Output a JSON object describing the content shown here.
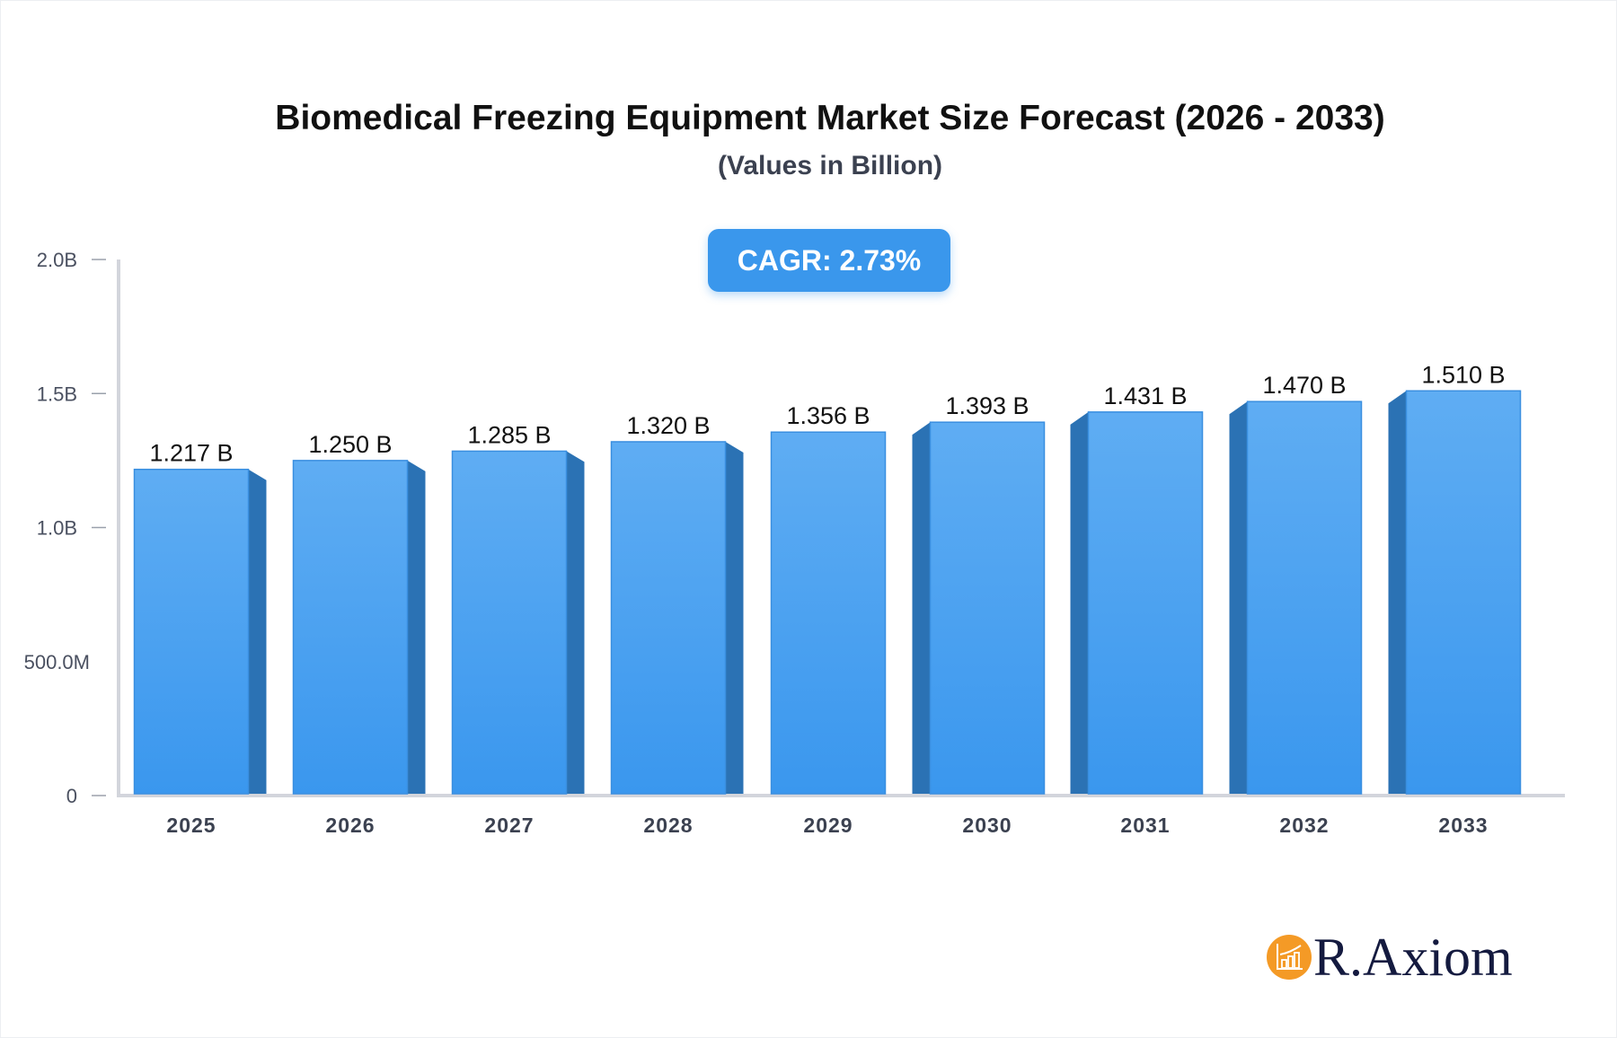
{
  "chart_data": {
    "type": "bar",
    "title": "Biomedical Freezing Equipment Market Size Forecast (2026 - 2033)",
    "subtitle": "(Values in Billion)",
    "categories": [
      "2025",
      "2026",
      "2027",
      "2028",
      "2029",
      "2030",
      "2031",
      "2032",
      "2033"
    ],
    "values": [
      1.217,
      1.25,
      1.285,
      1.32,
      1.356,
      1.393,
      1.431,
      1.47,
      1.51
    ],
    "data_labels": [
      "1.217 B",
      "1.250 B",
      "1.285 B",
      "1.320 B",
      "1.356 B",
      "1.393 B",
      "1.431 B",
      "1.470 B",
      "1.510 B"
    ],
    "y_ticks": [
      0,
      0.5,
      1.0,
      1.5,
      2.0
    ],
    "y_tick_labels": [
      "0",
      "500.0M",
      "1.0B",
      "1.5B",
      "2.0B"
    ],
    "ylim": [
      0,
      2.0
    ],
    "xlabel": "",
    "ylabel": "",
    "grid": false,
    "colors": {
      "bar_top": "#5fadf3",
      "bar_bottom": "#3a97ee",
      "bar_side": "#2b72b4",
      "axis": "#d3d5dc"
    }
  },
  "badge": {
    "cagr_label": "CAGR: 2.73%"
  },
  "logo": {
    "text": "R.Axiom",
    "color": "#f49a26"
  }
}
